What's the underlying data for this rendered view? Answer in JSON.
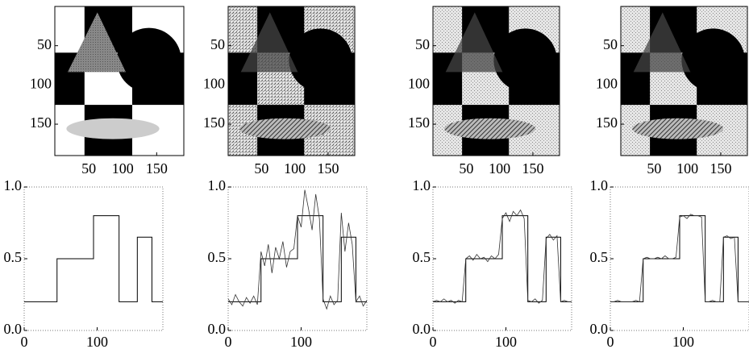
{
  "chart_data": [
    {
      "type": "image",
      "xlim": [
        0,
        190
      ],
      "ylim": [
        190,
        0
      ],
      "xticks": [
        50,
        100,
        150
      ],
      "yticks": [
        50,
        100,
        150
      ]
    },
    {
      "type": "image",
      "xlim": [
        0,
        190
      ],
      "ylim": [
        190,
        0
      ],
      "xticks": [
        50,
        100,
        150
      ],
      "yticks": [
        50,
        100,
        150
      ]
    },
    {
      "type": "image",
      "xlim": [
        0,
        190
      ],
      "ylim": [
        190,
        0
      ],
      "xticks": [
        50,
        100,
        150
      ],
      "yticks": [
        50,
        100,
        150
      ]
    },
    {
      "type": "image",
      "xlim": [
        0,
        190
      ],
      "ylim": [
        190,
        0
      ],
      "xticks": [
        50,
        100,
        150
      ],
      "yticks": [
        50,
        100,
        150
      ]
    },
    {
      "type": "line",
      "xlim": [
        0,
        190
      ],
      "ylim": [
        0,
        1
      ],
      "xticks": [
        0,
        100
      ],
      "yticks": [
        {
          "value": 0,
          "label": "0.0"
        },
        {
          "value": 0.5,
          "label": "0.5"
        },
        {
          "value": 1,
          "label": "1.0"
        }
      ],
      "series": [
        {
          "color": "#000000",
          "x": [
            0,
            45,
            45,
            95,
            95,
            130,
            130,
            155,
            155,
            175,
            175,
            190
          ],
          "values": [
            0.2,
            0.2,
            0.5,
            0.5,
            0.8,
            0.8,
            0.2,
            0.2,
            0.65,
            0.65,
            0.2,
            0.2
          ]
        }
      ]
    },
    {
      "type": "line",
      "xlim": [
        0,
        190
      ],
      "ylim": [
        0,
        1
      ],
      "xticks": [
        0,
        100
      ],
      "yticks": [
        {
          "value": 0,
          "label": "0.0"
        },
        {
          "value": 0.5,
          "label": "0.5"
        },
        {
          "value": 1,
          "label": "1.0"
        }
      ],
      "series": [
        {
          "color": "#000000",
          "x": [
            0,
            45,
            45,
            95,
            95,
            130,
            130,
            155,
            155,
            175,
            175,
            190
          ],
          "values": [
            0.2,
            0.2,
            0.5,
            0.5,
            0.8,
            0.8,
            0.2,
            0.2,
            0.65,
            0.65,
            0.2,
            0.2
          ]
        },
        {
          "color": "#333333",
          "x": [
            0,
            5,
            10,
            15,
            20,
            25,
            30,
            35,
            40,
            45,
            50,
            55,
            60,
            65,
            70,
            75,
            80,
            85,
            90,
            95,
            100,
            105,
            110,
            115,
            120,
            125,
            130,
            135,
            140,
            145,
            150,
            155,
            160,
            165,
            170,
            175,
            180,
            185,
            190
          ],
          "values": [
            0.22,
            0.18,
            0.25,
            0.2,
            0.17,
            0.23,
            0.19,
            0.24,
            0.18,
            0.55,
            0.45,
            0.6,
            0.4,
            0.58,
            0.5,
            0.62,
            0.44,
            0.55,
            0.57,
            0.8,
            0.72,
            0.98,
            0.85,
            0.7,
            0.95,
            0.78,
            0.22,
            0.15,
            0.24,
            0.18,
            0.21,
            0.82,
            0.55,
            0.75,
            0.6,
            0.2,
            0.24,
            0.17,
            0.21
          ]
        }
      ]
    },
    {
      "type": "line",
      "xlim": [
        0,
        190
      ],
      "ylim": [
        0,
        1
      ],
      "xticks": [
        0,
        100
      ],
      "yticks": [
        {
          "value": 0,
          "label": "0.0"
        },
        {
          "value": 0.5,
          "label": "0.5"
        },
        {
          "value": 1,
          "label": "1.0"
        }
      ],
      "series": [
        {
          "color": "#000000",
          "x": [
            0,
            45,
            45,
            95,
            95,
            130,
            130,
            155,
            155,
            175,
            175,
            190
          ],
          "values": [
            0.2,
            0.2,
            0.5,
            0.5,
            0.8,
            0.8,
            0.2,
            0.2,
            0.65,
            0.65,
            0.2,
            0.2
          ]
        },
        {
          "color": "#333333",
          "x": [
            0,
            5,
            10,
            15,
            20,
            25,
            30,
            35,
            40,
            45,
            50,
            55,
            60,
            65,
            70,
            75,
            80,
            85,
            90,
            95,
            100,
            105,
            110,
            115,
            120,
            125,
            130,
            135,
            140,
            145,
            150,
            155,
            160,
            165,
            170,
            175,
            180,
            185,
            190
          ],
          "values": [
            0.2,
            0.21,
            0.2,
            0.22,
            0.2,
            0.21,
            0.19,
            0.21,
            0.2,
            0.5,
            0.52,
            0.49,
            0.53,
            0.5,
            0.51,
            0.48,
            0.52,
            0.5,
            0.53,
            0.78,
            0.82,
            0.76,
            0.83,
            0.8,
            0.84,
            0.78,
            0.21,
            0.2,
            0.22,
            0.19,
            0.21,
            0.64,
            0.67,
            0.63,
            0.66,
            0.2,
            0.21,
            0.2,
            0.2
          ]
        }
      ]
    },
    {
      "type": "line",
      "xlim": [
        0,
        190
      ],
      "ylim": [
        0,
        1
      ],
      "xticks": [
        0,
        100
      ],
      "yticks": [
        {
          "value": 0,
          "label": "0.0"
        },
        {
          "value": 0.5,
          "label": "0.5"
        },
        {
          "value": 1,
          "label": "1.0"
        }
      ],
      "series": [
        {
          "color": "#000000",
          "x": [
            0,
            45,
            45,
            95,
            95,
            130,
            130,
            155,
            155,
            175,
            175,
            190
          ],
          "values": [
            0.2,
            0.2,
            0.5,
            0.5,
            0.8,
            0.8,
            0.2,
            0.2,
            0.65,
            0.65,
            0.2,
            0.2
          ]
        },
        {
          "color": "#333333",
          "x": [
            0,
            5,
            10,
            15,
            20,
            25,
            30,
            35,
            40,
            45,
            50,
            55,
            60,
            65,
            70,
            75,
            80,
            85,
            90,
            95,
            100,
            105,
            110,
            115,
            120,
            125,
            130,
            135,
            140,
            145,
            150,
            155,
            160,
            165,
            170,
            175,
            180,
            185,
            190
          ],
          "values": [
            0.2,
            0.2,
            0.21,
            0.2,
            0.2,
            0.2,
            0.2,
            0.21,
            0.2,
            0.5,
            0.51,
            0.5,
            0.5,
            0.51,
            0.5,
            0.52,
            0.5,
            0.5,
            0.51,
            0.79,
            0.8,
            0.78,
            0.81,
            0.8,
            0.8,
            0.79,
            0.2,
            0.2,
            0.21,
            0.2,
            0.2,
            0.65,
            0.66,
            0.64,
            0.65,
            0.2,
            0.2,
            0.2,
            0.2
          ]
        }
      ]
    }
  ]
}
